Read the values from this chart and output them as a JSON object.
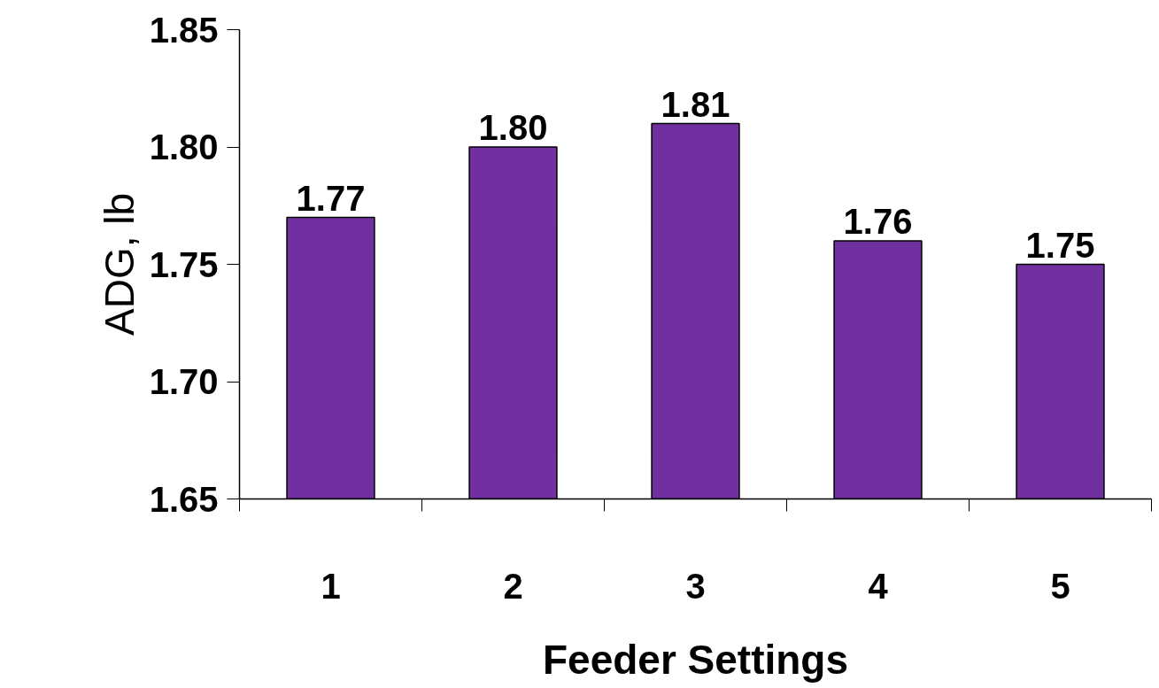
{
  "chart_data": {
    "type": "bar",
    "xlabel": "Feeder Settings",
    "ylabel": "ADG, lb",
    "categories": [
      "1",
      "2",
      "3",
      "4",
      "5"
    ],
    "values": [
      1.77,
      1.8,
      1.81,
      1.76,
      1.75
    ],
    "value_labels": [
      "1.77",
      "1.80",
      "1.81",
      "1.76",
      "1.75"
    ],
    "color": "#7030a0",
    "ylim": [
      1.65,
      1.85
    ],
    "yticks": [
      {
        "value": 1.65,
        "label": "1.65"
      },
      {
        "value": 1.7,
        "label": "1.70"
      },
      {
        "value": 1.75,
        "label": "1.75"
      },
      {
        "value": 1.8,
        "label": "1.80"
      },
      {
        "value": 1.85,
        "label": "1.85"
      }
    ],
    "grid": false
  }
}
